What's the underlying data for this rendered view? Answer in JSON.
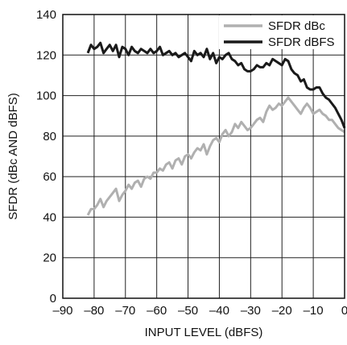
{
  "chart_data": {
    "type": "line",
    "title": "",
    "xlabel": "INPUT LEVEL (dBFS)",
    "ylabel": "SFDR (dBc AND dBFS)",
    "xlim": [
      -90,
      0
    ],
    "ylim": [
      0,
      140
    ],
    "xticks": [
      -90,
      -80,
      -70,
      -60,
      -50,
      -40,
      -30,
      -20,
      -10,
      0
    ],
    "xtick_labels": [
      "–90",
      "–80",
      "–70",
      "–60",
      "–50",
      "–40",
      "–30",
      "–20",
      "–10",
      "0"
    ],
    "yticks": [
      0,
      20,
      40,
      60,
      80,
      100,
      120,
      140
    ],
    "ytick_labels": [
      "0",
      "20",
      "40",
      "60",
      "80",
      "100",
      "120",
      "140"
    ],
    "grid": true,
    "legend_position": "top-right",
    "series": [
      {
        "name": "SFDR dBc",
        "color": "#b0b0b0",
        "x": [
          -82,
          -81,
          -80,
          -79,
          -78,
          -77,
          -76,
          -75,
          -74,
          -73,
          -72,
          -71,
          -70,
          -69,
          -68,
          -67,
          -66,
          -65,
          -64,
          -63,
          -62,
          -61,
          -60,
          -59,
          -58,
          -57,
          -56,
          -55,
          -54,
          -53,
          -52,
          -51,
          -50,
          -49,
          -48,
          -47,
          -46,
          -45,
          -44,
          -43,
          -42,
          -41,
          -40,
          -39,
          -38,
          -37,
          -36,
          -35,
          -34,
          -33,
          -32,
          -31,
          -30,
          -29,
          -28,
          -27,
          -26,
          -25,
          -24,
          -23,
          -22,
          -21,
          -20,
          -19,
          -18,
          -17,
          -16,
          -15,
          -14,
          -13,
          -12,
          -11,
          -10,
          -9,
          -8,
          -7,
          -6,
          -5,
          -4,
          -3,
          -2,
          -1,
          0
        ],
        "y": [
          41,
          44,
          44,
          46,
          49,
          45,
          48,
          50,
          52,
          54,
          48,
          51,
          53,
          56,
          54,
          57,
          58,
          55,
          59,
          60,
          59,
          62,
          62,
          64,
          63,
          66,
          67,
          64,
          68,
          69,
          66,
          70,
          71,
          69,
          72,
          74,
          73,
          76,
          71,
          75,
          78,
          79,
          77,
          81,
          83,
          80,
          82,
          86,
          84,
          87,
          85,
          83,
          84,
          86,
          88,
          89,
          87,
          92,
          95,
          93,
          94,
          96,
          95,
          97,
          99,
          97,
          95,
          93,
          91,
          94,
          96,
          94,
          91,
          92,
          93,
          91,
          90,
          88,
          88,
          86,
          84,
          83,
          82
        ]
      },
      {
        "name": "SFDR dBFS",
        "color": "#1a1a1a",
        "x": [
          -82,
          -81,
          -80,
          -79,
          -78,
          -77,
          -76,
          -75,
          -74,
          -73,
          -72,
          -71,
          -70,
          -69,
          -68,
          -67,
          -66,
          -65,
          -64,
          -63,
          -62,
          -61,
          -60,
          -59,
          -58,
          -57,
          -56,
          -55,
          -54,
          -53,
          -52,
          -51,
          -50,
          -49,
          -48,
          -47,
          -46,
          -45,
          -44,
          -43,
          -42,
          -41,
          -40,
          -39,
          -38,
          -37,
          -36,
          -35,
          -34,
          -33,
          -32,
          -31,
          -30,
          -29,
          -28,
          -27,
          -26,
          -25,
          -24,
          -23,
          -22,
          -21,
          -20,
          -19,
          -18,
          -17,
          -16,
          -15,
          -14,
          -13,
          -12,
          -11,
          -10,
          -9,
          -8,
          -7,
          -6,
          -5,
          -4,
          -3,
          -2,
          -1,
          0
        ],
        "y": [
          121,
          125,
          123,
          124,
          126,
          121,
          123,
          125,
          122,
          125,
          119,
          124,
          123,
          120,
          124,
          122,
          121,
          123,
          122,
          121,
          123,
          121,
          122,
          124,
          120,
          121,
          122,
          120,
          121,
          119,
          120,
          121,
          119,
          117,
          122,
          120,
          121,
          119,
          123,
          118,
          121,
          116,
          119,
          118,
          120,
          121,
          118,
          117,
          115,
          116,
          113,
          112,
          112,
          113,
          115,
          114,
          114,
          116,
          115,
          118,
          117,
          116,
          115,
          118,
          117,
          113,
          111,
          110,
          107,
          108,
          104,
          103,
          103,
          104,
          104,
          101,
          99,
          98,
          96,
          94,
          91,
          88,
          84
        ]
      }
    ]
  }
}
